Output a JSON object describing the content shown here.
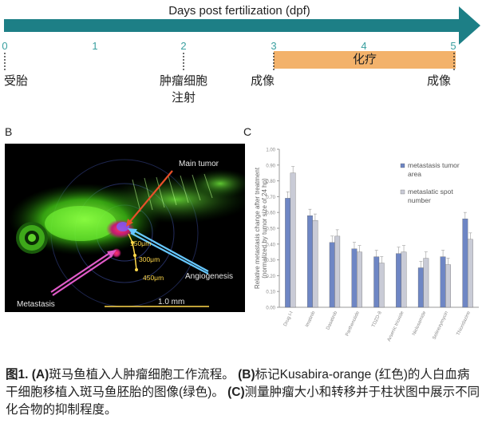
{
  "panel_a": {
    "timeline_title": "Days post fertilization (dpf)",
    "days": [
      "0",
      "1",
      "2",
      "3",
      "4",
      "5"
    ],
    "highlight_label": "化疗",
    "labels": {
      "day0": "受胎",
      "day2_line1": "肿瘤细胞",
      "day2_line2": "注射",
      "day3": "成像",
      "day5": "成像"
    },
    "colors": {
      "arrow": "#1d7f86",
      "highlight": "#f3b26b",
      "tick_text": "#3aa0a0"
    }
  },
  "panel_b": {
    "letter": "B",
    "labels": {
      "main_tumor": "Main tumor",
      "angiogenesis": "Angiogenesis",
      "metastasis": "Metastasis",
      "scale_bar": "1.0 mm",
      "d150": "150μm",
      "d300": "300μm",
      "d450": "450μm"
    }
  },
  "panel_c": {
    "letter": "C",
    "chart_data": {
      "type": "bar",
      "ylabel": "Relative metastasis change after treatment (normalized by tumor size of 24 hp)",
      "ylim": [
        0,
        1
      ],
      "yticks": [
        "0.00",
        "0.10",
        "0.20",
        "0.30",
        "0.40",
        "0.50",
        "0.60",
        "0.70",
        "0.80",
        "0.90",
        "1.00"
      ],
      "categories": [
        "Drug I-I",
        "Imatinib",
        "Dasatinib",
        "Parthenolide",
        "TDZD-8",
        "Arsenic trioxide",
        "Niclosamide",
        "Selinexymycin",
        "Thioridazine"
      ],
      "series": [
        {
          "name": "metastasis tumor area",
          "color": "#6e86c4",
          "values": [
            0.69,
            0.58,
            0.41,
            0.37,
            0.32,
            0.34,
            0.25,
            0.32,
            0.56
          ]
        },
        {
          "name": "metaslatic spot number",
          "color": "#c9cbd6",
          "values": [
            0.85,
            0.55,
            0.45,
            0.35,
            0.28,
            0.35,
            0.31,
            0.27,
            0.43
          ]
        }
      ],
      "legend": [
        "metastasis tumor area",
        "metaslatic spot number"
      ]
    }
  },
  "caption": {
    "fig_label": "图1.",
    "a_label": "(A)",
    "a_text": "斑马鱼植入人肿瘤细胞工作流程。",
    "b_label": "(B)",
    "b_text": "标记Kusabira-orange (红色)的人白血病干细胞移植入斑马鱼胚胎的图像(绿色)。",
    "c_label": "(C)",
    "c_text": "测量肿瘤大小和转移并于柱状图中展示不同化合物的抑制程度。"
  }
}
